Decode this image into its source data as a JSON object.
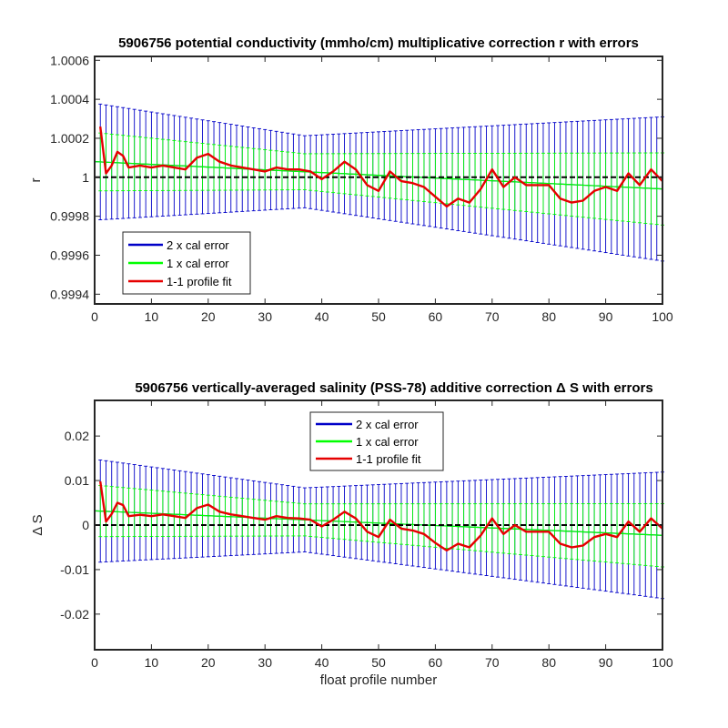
{
  "chart_data": [
    {
      "type": "line",
      "title": "5906756 potential conductivity (mmho/cm) multiplicative correction r with errors",
      "xlabel": "",
      "ylabel": "r",
      "xlim": [
        0,
        100
      ],
      "ylim": [
        0.99935,
        1.00062
      ],
      "xticks": [
        0,
        10,
        20,
        30,
        40,
        50,
        60,
        70,
        80,
        90,
        100
      ],
      "xtick_labels": [
        "0",
        "10",
        "20",
        "30",
        "40",
        "50",
        "60",
        "70",
        "80",
        "90",
        "100"
      ],
      "yticks": [
        0.9994,
        0.9996,
        0.9998,
        1.0,
        1.0002,
        1.0004,
        1.0006
      ],
      "ytick_labels": [
        "0.9994",
        "0.9996",
        "0.9998",
        "1",
        "1.0002",
        "1.0004",
        "1.0006"
      ],
      "reference_line": 1.0,
      "legend_position": "lower-left",
      "fit_center": {
        "x": [
          0,
          100
        ],
        "y": [
          1.00008,
          0.99994
        ]
      },
      "error_halfwidth_2x": {
        "x": [
          0,
          37,
          100
        ],
        "y": [
          0.0003,
          0.000185,
          0.00037
        ]
      },
      "error_halfwidth_1x": {
        "x": [
          0,
          37,
          100
        ],
        "y": [
          0.00015,
          9.25e-05,
          0.000185
        ]
      },
      "series": [
        {
          "name": "2 x cal error",
          "color": "#0000c8",
          "kind": "errorbar"
        },
        {
          "name": "1 x cal error",
          "color": "#00ff00",
          "kind": "errorbar"
        },
        {
          "name": "1-1 profile fit",
          "color": "#e60000",
          "kind": "line",
          "x": [
            1,
            2,
            3,
            4,
            5,
            6,
            8,
            10,
            12,
            14,
            16,
            18,
            20,
            22,
            24,
            26,
            28,
            30,
            32,
            34,
            36,
            38,
            40,
            42,
            44,
            46,
            48,
            50,
            52,
            54,
            56,
            58,
            60,
            62,
            64,
            66,
            68,
            70,
            72,
            74,
            76,
            78,
            80,
            82,
            84,
            86,
            88,
            90,
            92,
            94,
            96,
            98,
            100
          ],
          "y": [
            1.00026,
            1.00002,
            1.00006,
            1.00013,
            1.00011,
            1.00005,
            1.00006,
            1.00005,
            1.00006,
            1.00005,
            1.00004,
            1.0001,
            1.00012,
            1.00008,
            1.00006,
            1.00005,
            1.00004,
            1.00003,
            1.00005,
            1.00004,
            1.00004,
            1.00003,
            0.99999,
            1.00003,
            1.00008,
            1.00004,
            0.99996,
            0.99993,
            1.00003,
            0.99998,
            0.99997,
            0.99995,
            0.9999,
            0.99985,
            0.99989,
            0.99987,
            0.99994,
            1.00004,
            0.99995,
            1.0,
            0.99996,
            0.99996,
            0.99996,
            0.99989,
            0.99987,
            0.99988,
            0.99993,
            0.99995,
            0.99993,
            1.00002,
            0.99996,
            1.00004,
            0.99998
          ]
        }
      ]
    },
    {
      "type": "line",
      "title": "5906756 vertically-averaged salinity (PSS-78) additive correction Δ S with errors",
      "xlabel": "float profile number",
      "ylabel": "Δ S",
      "xlim": [
        0,
        100
      ],
      "ylim": [
        -0.028,
        0.028
      ],
      "xticks": [
        0,
        10,
        20,
        30,
        40,
        50,
        60,
        70,
        80,
        90,
        100
      ],
      "xtick_labels": [
        "0",
        "10",
        "20",
        "30",
        "40",
        "50",
        "60",
        "70",
        "80",
        "90",
        "100"
      ],
      "yticks": [
        -0.02,
        -0.01,
        0,
        0.01,
        0.02
      ],
      "ytick_labels": [
        "-0.02",
        "-0.01",
        "0",
        "0.01",
        "0.02"
      ],
      "reference_line": 0,
      "legend_position": "top-center",
      "fit_center": {
        "x": [
          0,
          100
        ],
        "y": [
          0.0032,
          -0.0023
        ]
      },
      "error_halfwidth_2x": {
        "x": [
          0,
          37,
          100
        ],
        "y": [
          0.0116,
          0.0072,
          0.0142
        ]
      },
      "error_halfwidth_1x": {
        "x": [
          0,
          37,
          100
        ],
        "y": [
          0.0058,
          0.0036,
          0.0071
        ]
      },
      "series": [
        {
          "name": "2 x cal error",
          "color": "#0000c8",
          "kind": "errorbar"
        },
        {
          "name": "1 x cal error",
          "color": "#00ff00",
          "kind": "errorbar"
        },
        {
          "name": "1-1 profile fit",
          "color": "#e60000",
          "kind": "line",
          "x": [
            1,
            2,
            3,
            4,
            5,
            6,
            8,
            10,
            12,
            14,
            16,
            18,
            20,
            22,
            24,
            26,
            28,
            30,
            32,
            34,
            36,
            38,
            40,
            42,
            44,
            46,
            48,
            50,
            52,
            54,
            56,
            58,
            60,
            62,
            64,
            66,
            68,
            70,
            72,
            74,
            76,
            78,
            80,
            82,
            84,
            86,
            88,
            90,
            92,
            94,
            96,
            98,
            100
          ],
          "y": [
            0.0098,
            0.0008,
            0.0025,
            0.005,
            0.0045,
            0.002,
            0.0023,
            0.002,
            0.0024,
            0.002,
            0.0016,
            0.0038,
            0.0046,
            0.003,
            0.0024,
            0.002,
            0.0016,
            0.0012,
            0.002,
            0.0016,
            0.0015,
            0.0012,
            -0.0003,
            0.0012,
            0.003,
            0.0015,
            -0.0015,
            -0.0027,
            0.0012,
            -0.0008,
            -0.0012,
            -0.002,
            -0.004,
            -0.0057,
            -0.0042,
            -0.005,
            -0.0023,
            0.0015,
            -0.002,
            0.0,
            -0.0015,
            -0.0015,
            -0.0015,
            -0.0042,
            -0.005,
            -0.0046,
            -0.0027,
            -0.002,
            -0.0027,
            0.0008,
            -0.0015,
            0.0015,
            -0.0008
          ]
        }
      ]
    }
  ]
}
